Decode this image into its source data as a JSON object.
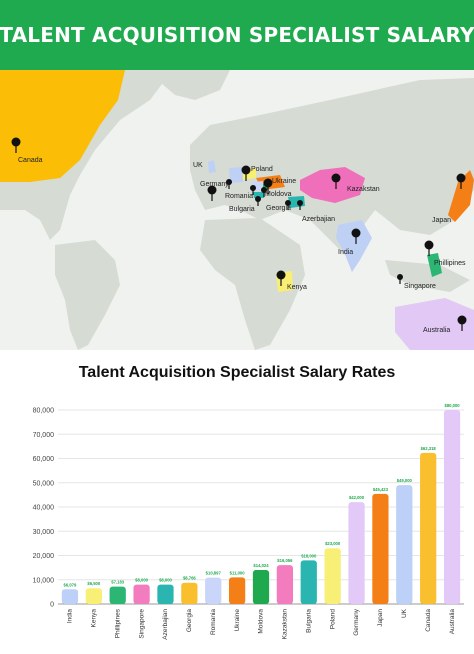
{
  "header": {
    "title": "TALENT ACQUISITION SPECIALIST SALARY"
  },
  "map": {
    "labels": [
      "Canada",
      "UK",
      "Poland",
      "Germany",
      "Ukraine",
      "Romania",
      "Moldova",
      "Kazakstan",
      "Bulgaria",
      "Georgia",
      "Azerbajian",
      "Japan",
      "India",
      "Phillipines",
      "Kenya",
      "Singapore",
      "Australia"
    ],
    "colors": {
      "land": "#d6dbd4",
      "canada": "#fbbd06",
      "kazakstan": "#f06fba",
      "australia": "#e1c8f5",
      "india": "#bfd0f5",
      "japan": "#f57f17",
      "ukraine": "#f57f17",
      "kenya": "#f9ee74",
      "phillipines": "#2bb673"
    }
  },
  "chart_data": {
    "type": "bar",
    "title": "Talent Acquisition Specialist Salary Rates",
    "categories": [
      "India",
      "Kenya",
      "Phillipines",
      "Singapore",
      "Azerbajian",
      "Georgia",
      "Romania",
      "Ukraine",
      "Moldova",
      "Kazakstan",
      "Bulgaria",
      "Poland",
      "Germany",
      "Japan",
      "UK",
      "Canada",
      "Australia"
    ],
    "values": [
      6079,
      6500,
      7183,
      8000,
      8000,
      8766,
      10897,
      11000,
      14024,
      16056,
      18000,
      23000,
      42000,
      45423,
      49000,
      62318,
      80000
    ],
    "value_labels": [
      "$6,079",
      "$6,500",
      "$7,183",
      "$8,000",
      "$8,000",
      "$8,766",
      "$10,897",
      "$11,000",
      "$14,024",
      "$16,056",
      "$18,000",
      "$23,000",
      "$42,000",
      "$45,423",
      "$49,000",
      "$62,318",
      "$80,000"
    ],
    "colors": [
      "#bdd0f7",
      "#f8ef77",
      "#2bb673",
      "#f37cbf",
      "#2ab5b0",
      "#f9bf2e",
      "#c9d6fa",
      "#f57f17",
      "#1fa94f",
      "#f37cbf",
      "#2ab5b0",
      "#f8ef77",
      "#e2c9f7",
      "#f57f17",
      "#bdd0f7",
      "#f9bf2e",
      "#e2c9f7"
    ],
    "ylim": [
      0,
      80000
    ],
    "yticks": [
      0,
      10000,
      20000,
      30000,
      40000,
      50000,
      60000,
      70000,
      80000
    ],
    "ytick_labels": [
      "0",
      "10,000",
      "20,000",
      "30,000",
      "40,000",
      "50,000",
      "60,000",
      "70,000",
      "80,000"
    ],
    "grid": true,
    "value_label_color": "#1faa4f"
  }
}
